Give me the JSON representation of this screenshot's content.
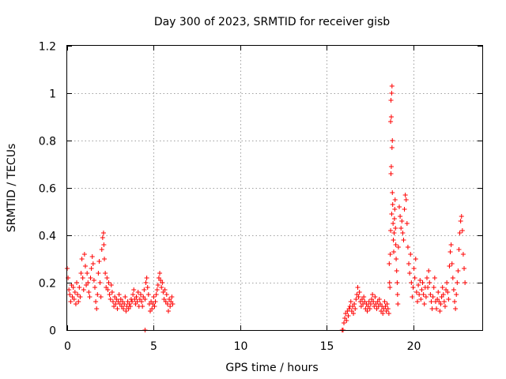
{
  "chart_data": {
    "type": "scatter",
    "title": "Day 300 of 2023, SRMTID for receiver gisb",
    "xlabel": "GPS time / hours",
    "ylabel": "SRMTID / TECUs",
    "xlim": [
      0,
      24
    ],
    "ylim": [
      0,
      1.2
    ],
    "xticks": [
      0,
      5,
      10,
      15,
      20
    ],
    "xtick_labels": [
      "0",
      "5",
      "10",
      "15",
      "20"
    ],
    "yticks": [
      0,
      0.2,
      0.4,
      0.6,
      0.8,
      1,
      1.2
    ],
    "ytick_labels": [
      "0",
      "0.2",
      "0.4",
      "0.6",
      "0.8",
      "1",
      "1.2"
    ],
    "grid": true,
    "marker": "+",
    "color": "#ff0000",
    "series": [
      {
        "name": "SRMTID",
        "points": [
          [
            0.0,
            0.26
          ],
          [
            0.05,
            0.22
          ],
          [
            0.1,
            0.17
          ],
          [
            0.15,
            0.15
          ],
          [
            0.2,
            0.12
          ],
          [
            0.25,
            0.19
          ],
          [
            0.3,
            0.14
          ],
          [
            0.35,
            0.18
          ],
          [
            0.4,
            0.13
          ],
          [
            0.45,
            0.16
          ],
          [
            0.5,
            0.11
          ],
          [
            0.55,
            0.2
          ],
          [
            0.6,
            0.15
          ],
          [
            0.65,
            0.12
          ],
          [
            0.7,
            0.18
          ],
          [
            0.75,
            0.14
          ],
          [
            0.8,
            0.24
          ],
          [
            0.85,
            0.3
          ],
          [
            0.9,
            0.22
          ],
          [
            0.95,
            0.17
          ],
          [
            1.0,
            0.32
          ],
          [
            1.05,
            0.27
          ],
          [
            1.1,
            0.19
          ],
          [
            1.15,
            0.24
          ],
          [
            1.2,
            0.2
          ],
          [
            1.25,
            0.16
          ],
          [
            1.3,
            0.14
          ],
          [
            1.35,
            0.22
          ],
          [
            1.4,
            0.26
          ],
          [
            1.45,
            0.31
          ],
          [
            1.5,
            0.28
          ],
          [
            1.55,
            0.21
          ],
          [
            1.6,
            0.18
          ],
          [
            1.65,
            0.12
          ],
          [
            1.7,
            0.09
          ],
          [
            1.75,
            0.15
          ],
          [
            1.8,
            0.24
          ],
          [
            1.85,
            0.29
          ],
          [
            1.9,
            0.2
          ],
          [
            1.95,
            0.14
          ],
          [
            2.0,
            0.34
          ],
          [
            2.05,
            0.39
          ],
          [
            2.1,
            0.41
          ],
          [
            2.12,
            0.36
          ],
          [
            2.15,
            0.3
          ],
          [
            2.2,
            0.24
          ],
          [
            2.25,
            0.18
          ],
          [
            2.3,
            0.22
          ],
          [
            2.35,
            0.17
          ],
          [
            2.4,
            0.2
          ],
          [
            2.45,
            0.15
          ],
          [
            2.5,
            0.13
          ],
          [
            2.55,
            0.19
          ],
          [
            2.6,
            0.16
          ],
          [
            2.65,
            0.12
          ],
          [
            2.7,
            0.1
          ],
          [
            2.75,
            0.14
          ],
          [
            2.8,
            0.11
          ],
          [
            2.85,
            0.13
          ],
          [
            2.9,
            0.09
          ],
          [
            2.95,
            0.12
          ],
          [
            3.0,
            0.15
          ],
          [
            3.05,
            0.11
          ],
          [
            3.1,
            0.13
          ],
          [
            3.15,
            0.1
          ],
          [
            3.2,
            0.12
          ],
          [
            3.25,
            0.09
          ],
          [
            3.3,
            0.11
          ],
          [
            3.35,
            0.14
          ],
          [
            3.4,
            0.08
          ],
          [
            3.45,
            0.1
          ],
          [
            3.5,
            0.12
          ],
          [
            3.55,
            0.09
          ],
          [
            3.6,
            0.11
          ],
          [
            3.65,
            0.1
          ],
          [
            3.7,
            0.13
          ],
          [
            3.75,
            0.12
          ],
          [
            3.8,
            0.15
          ],
          [
            3.85,
            0.17
          ],
          [
            3.9,
            0.13
          ],
          [
            3.95,
            0.11
          ],
          [
            4.0,
            0.14
          ],
          [
            4.05,
            0.12
          ],
          [
            4.1,
            0.16
          ],
          [
            4.15,
            0.1
          ],
          [
            4.2,
            0.13
          ],
          [
            4.25,
            0.15
          ],
          [
            4.3,
            0.12
          ],
          [
            4.35,
            0.1
          ],
          [
            4.4,
            0.14
          ],
          [
            4.45,
            0.17
          ],
          [
            4.5,
            0.13
          ],
          [
            4.55,
            0.2
          ],
          [
            4.6,
            0.22
          ],
          [
            4.65,
            0.18
          ],
          [
            4.7,
            0.15
          ],
          [
            4.75,
            0.11
          ],
          [
            4.8,
            0.08
          ],
          [
            4.85,
            0.12
          ],
          [
            4.9,
            0.09
          ],
          [
            4.95,
            0.11
          ],
          [
            5.0,
            0.14
          ],
          [
            5.05,
            0.1
          ],
          [
            5.1,
            0.12
          ],
          [
            5.15,
            0.15
          ],
          [
            5.2,
            0.17
          ],
          [
            5.25,
            0.19
          ],
          [
            5.3,
            0.22
          ],
          [
            5.35,
            0.24
          ],
          [
            5.4,
            0.21
          ],
          [
            5.45,
            0.18
          ],
          [
            5.5,
            0.2
          ],
          [
            5.55,
            0.16
          ],
          [
            5.6,
            0.13
          ],
          [
            5.65,
            0.17
          ],
          [
            5.7,
            0.12
          ],
          [
            5.75,
            0.15
          ],
          [
            5.8,
            0.11
          ],
          [
            5.85,
            0.08
          ],
          [
            5.9,
            0.13
          ],
          [
            5.95,
            0.1
          ],
          [
            6.0,
            0.12
          ],
          [
            6.05,
            0.14
          ],
          [
            6.1,
            0.11
          ],
          [
            4.5,
            0.0
          ],
          [
            15.9,
            0.0
          ],
          [
            15.95,
            0.0
          ],
          [
            16.0,
            0.03
          ],
          [
            16.05,
            0.05
          ],
          [
            16.1,
            0.07
          ],
          [
            16.15,
            0.04
          ],
          [
            16.2,
            0.08
          ],
          [
            16.25,
            0.06
          ],
          [
            16.3,
            0.09
          ],
          [
            16.35,
            0.1
          ],
          [
            16.4,
            0.12
          ],
          [
            16.45,
            0.08
          ],
          [
            16.5,
            0.1
          ],
          [
            16.55,
            0.07
          ],
          [
            16.6,
            0.11
          ],
          [
            16.65,
            0.09
          ],
          [
            16.7,
            0.13
          ],
          [
            16.75,
            0.15
          ],
          [
            16.8,
            0.18
          ],
          [
            16.85,
            0.14
          ],
          [
            16.9,
            0.16
          ],
          [
            16.95,
            0.12
          ],
          [
            17.0,
            0.1
          ],
          [
            17.05,
            0.13
          ],
          [
            17.1,
            0.11
          ],
          [
            17.15,
            0.14
          ],
          [
            17.2,
            0.12
          ],
          [
            17.25,
            0.09
          ],
          [
            17.3,
            0.11
          ],
          [
            17.35,
            0.08
          ],
          [
            17.4,
            0.1
          ],
          [
            17.45,
            0.12
          ],
          [
            17.5,
            0.09
          ],
          [
            17.55,
            0.11
          ],
          [
            17.6,
            0.13
          ],
          [
            17.65,
            0.15
          ],
          [
            17.7,
            0.12
          ],
          [
            17.75,
            0.1
          ],
          [
            17.8,
            0.14
          ],
          [
            17.85,
            0.11
          ],
          [
            17.9,
            0.09
          ],
          [
            17.95,
            0.12
          ],
          [
            18.0,
            0.1
          ],
          [
            18.05,
            0.13
          ],
          [
            18.1,
            0.11
          ],
          [
            18.15,
            0.08
          ],
          [
            18.2,
            0.1
          ],
          [
            18.25,
            0.07
          ],
          [
            18.3,
            0.09
          ],
          [
            18.35,
            0.12
          ],
          [
            18.4,
            0.1
          ],
          [
            18.45,
            0.08
          ],
          [
            18.5,
            0.11
          ],
          [
            18.55,
            0.09
          ],
          [
            18.6,
            0.07
          ],
          [
            18.62,
            0.28
          ],
          [
            18.64,
            0.2
          ],
          [
            18.66,
            0.18
          ],
          [
            18.68,
            0.32
          ],
          [
            18.7,
            0.42
          ],
          [
            18.7,
            0.88
          ],
          [
            18.72,
            0.97
          ],
          [
            18.72,
            0.66
          ],
          [
            18.74,
            0.9
          ],
          [
            18.74,
            0.69
          ],
          [
            18.76,
            1.0
          ],
          [
            18.76,
            0.49
          ],
          [
            18.78,
            1.03
          ],
          [
            18.78,
            0.77
          ],
          [
            18.8,
            0.8
          ],
          [
            18.8,
            0.58
          ],
          [
            18.82,
            0.53
          ],
          [
            18.84,
            0.45
          ],
          [
            18.86,
            0.38
          ],
          [
            18.88,
            0.33
          ],
          [
            18.9,
            0.41
          ],
          [
            18.92,
            0.47
          ],
          [
            18.94,
            0.51
          ],
          [
            18.96,
            0.55
          ],
          [
            18.98,
            0.43
          ],
          [
            19.0,
            0.36
          ],
          [
            19.02,
            0.3
          ],
          [
            19.05,
            0.25
          ],
          [
            19.08,
            0.2
          ],
          [
            19.1,
            0.15
          ],
          [
            19.12,
            0.11
          ],
          [
            19.15,
            0.35
          ],
          [
            19.2,
            0.52
          ],
          [
            19.25,
            0.48
          ],
          [
            19.3,
            0.43
          ],
          [
            19.35,
            0.46
          ],
          [
            19.4,
            0.41
          ],
          [
            19.45,
            0.38
          ],
          [
            19.5,
            0.51
          ],
          [
            19.55,
            0.57
          ],
          [
            19.6,
            0.55
          ],
          [
            19.65,
            0.45
          ],
          [
            19.7,
            0.35
          ],
          [
            19.75,
            0.28
          ],
          [
            19.8,
            0.24
          ],
          [
            19.85,
            0.32
          ],
          [
            19.9,
            0.2
          ],
          [
            19.95,
            0.14
          ],
          [
            20.0,
            0.18
          ],
          [
            20.05,
            0.26
          ],
          [
            20.1,
            0.22
          ],
          [
            20.15,
            0.3
          ],
          [
            20.2,
            0.16
          ],
          [
            20.25,
            0.12
          ],
          [
            20.3,
            0.19
          ],
          [
            20.35,
            0.15
          ],
          [
            20.4,
            0.21
          ],
          [
            20.45,
            0.13
          ],
          [
            20.5,
            0.17
          ],
          [
            20.55,
            0.2
          ],
          [
            20.6,
            0.15
          ],
          [
            20.65,
            0.11
          ],
          [
            20.7,
            0.18
          ],
          [
            20.75,
            0.14
          ],
          [
            20.8,
            0.22
          ],
          [
            20.85,
            0.18
          ],
          [
            20.9,
            0.25
          ],
          [
            20.95,
            0.2
          ],
          [
            21.0,
            0.15
          ],
          [
            21.05,
            0.12
          ],
          [
            21.1,
            0.09
          ],
          [
            21.15,
            0.14
          ],
          [
            21.2,
            0.18
          ],
          [
            21.25,
            0.22
          ],
          [
            21.3,
            0.12
          ],
          [
            21.35,
            0.09
          ],
          [
            21.4,
            0.13
          ],
          [
            21.45,
            0.16
          ],
          [
            21.5,
            0.12
          ],
          [
            21.55,
            0.08
          ],
          [
            21.6,
            0.11
          ],
          [
            21.65,
            0.14
          ],
          [
            21.7,
            0.18
          ],
          [
            21.75,
            0.15
          ],
          [
            21.8,
            0.12
          ],
          [
            21.85,
            0.1
          ],
          [
            21.9,
            0.17
          ],
          [
            21.95,
            0.2
          ],
          [
            22.0,
            0.16
          ],
          [
            22.05,
            0.13
          ],
          [
            22.1,
            0.27
          ],
          [
            22.15,
            0.33
          ],
          [
            22.2,
            0.36
          ],
          [
            22.25,
            0.28
          ],
          [
            22.3,
            0.22
          ],
          [
            22.35,
            0.17
          ],
          [
            22.4,
            0.12
          ],
          [
            22.45,
            0.09
          ],
          [
            22.5,
            0.15
          ],
          [
            22.55,
            0.2
          ],
          [
            22.6,
            0.25
          ],
          [
            22.65,
            0.34
          ],
          [
            22.7,
            0.41
          ],
          [
            22.75,
            0.46
          ],
          [
            22.8,
            0.48
          ],
          [
            22.85,
            0.42
          ],
          [
            22.9,
            0.32
          ],
          [
            22.95,
            0.26
          ],
          [
            23.0,
            0.2
          ]
        ]
      }
    ]
  }
}
